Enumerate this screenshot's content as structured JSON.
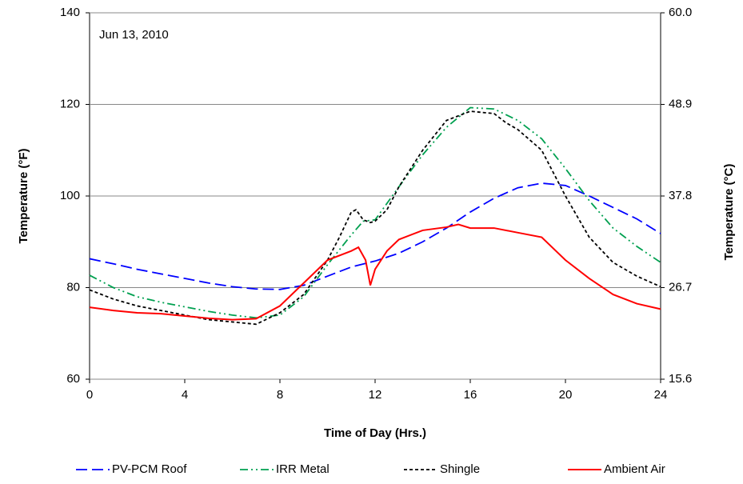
{
  "chart_data": {
    "type": "line",
    "annotation": "Jun 13, 2010",
    "x_label": "Time of Day (Hrs.)",
    "y_label": "Temperature (°F)",
    "y2_label": "Temperature (°C)",
    "xlim": [
      0,
      24
    ],
    "xticks": [
      0,
      4,
      8,
      12,
      16,
      20,
      24
    ],
    "ylim": [
      60,
      140
    ],
    "yticks": [
      60,
      80,
      100,
      120,
      140
    ],
    "y2lim": [
      15.6,
      60
    ],
    "y2ticks": [
      15.6,
      26.7,
      37.8,
      48.9,
      {
        "value": 60,
        "label": "60.0"
      }
    ],
    "grid": true,
    "legend": "bottom",
    "series": [
      {
        "name": "PV-PCM Roof",
        "color": "#0000ff",
        "style": "dashed",
        "x": [
          0,
          1,
          2,
          3,
          4,
          5,
          6,
          7,
          8,
          9,
          10,
          11,
          12,
          13,
          14,
          15,
          16,
          17,
          18,
          19,
          20,
          21,
          22,
          23,
          24
        ],
        "values": [
          86.3,
          85.2,
          84,
          83,
          82,
          81,
          80.2,
          79.7,
          79.6,
          80.5,
          82.5,
          84.5,
          85.8,
          87.5,
          90,
          93,
          96.5,
          99.5,
          101.8,
          102.8,
          102.3,
          100,
          97.5,
          95,
          91.8
        ]
      },
      {
        "name": "IRR Metal",
        "color": "#00a050",
        "style": "dash-dot-dot",
        "x": [
          0,
          1,
          2,
          3,
          4,
          5,
          6,
          7,
          8,
          9,
          10,
          11,
          11.5,
          12,
          13,
          14,
          15,
          16,
          17,
          18,
          19,
          20,
          21,
          22,
          23,
          24
        ],
        "values": [
          82.7,
          80,
          78,
          76.8,
          75.8,
          74.8,
          74,
          73.4,
          74,
          78,
          85,
          91.5,
          94.5,
          94.8,
          102,
          109,
          115,
          119.3,
          119,
          116.5,
          112.5,
          106,
          99,
          93,
          89,
          85.5
        ]
      },
      {
        "name": "Shingle",
        "color": "#000000",
        "style": "dotted",
        "x": [
          0,
          1,
          2,
          3,
          4,
          5,
          6,
          7,
          8,
          9,
          10,
          10.5,
          11,
          11.2,
          11.5,
          11.8,
          12,
          12.5,
          13,
          14,
          15,
          16,
          17,
          17.5,
          18,
          19,
          20,
          21,
          22,
          23,
          24
        ],
        "values": [
          79.5,
          77.5,
          76,
          75,
          74,
          73,
          72.5,
          72,
          74.5,
          78.5,
          86,
          91,
          96.5,
          97,
          94.8,
          94.2,
          94.5,
          97,
          102,
          110,
          116.5,
          118.5,
          118,
          116,
          114.5,
          110,
          100,
          91,
          85.5,
          82.5,
          80.2
        ]
      },
      {
        "name": "Ambient Air",
        "color": "#ff0000",
        "style": "solid",
        "x": [
          0,
          1,
          2,
          3,
          4,
          5,
          6,
          7,
          8,
          9,
          10,
          11,
          11.3,
          11.6,
          11.8,
          12,
          12.5,
          13,
          14,
          15,
          15.5,
          16,
          17,
          18,
          19,
          20,
          21,
          22,
          23,
          24
        ],
        "values": [
          75.7,
          75,
          74.5,
          74.3,
          73.8,
          73.3,
          73,
          73.2,
          76,
          81,
          86,
          88,
          88.8,
          86,
          80.5,
          84,
          88,
          90.5,
          92.5,
          93.2,
          93.8,
          93,
          93,
          92,
          91,
          86,
          82,
          78.5,
          76.5,
          75.3
        ]
      }
    ]
  }
}
